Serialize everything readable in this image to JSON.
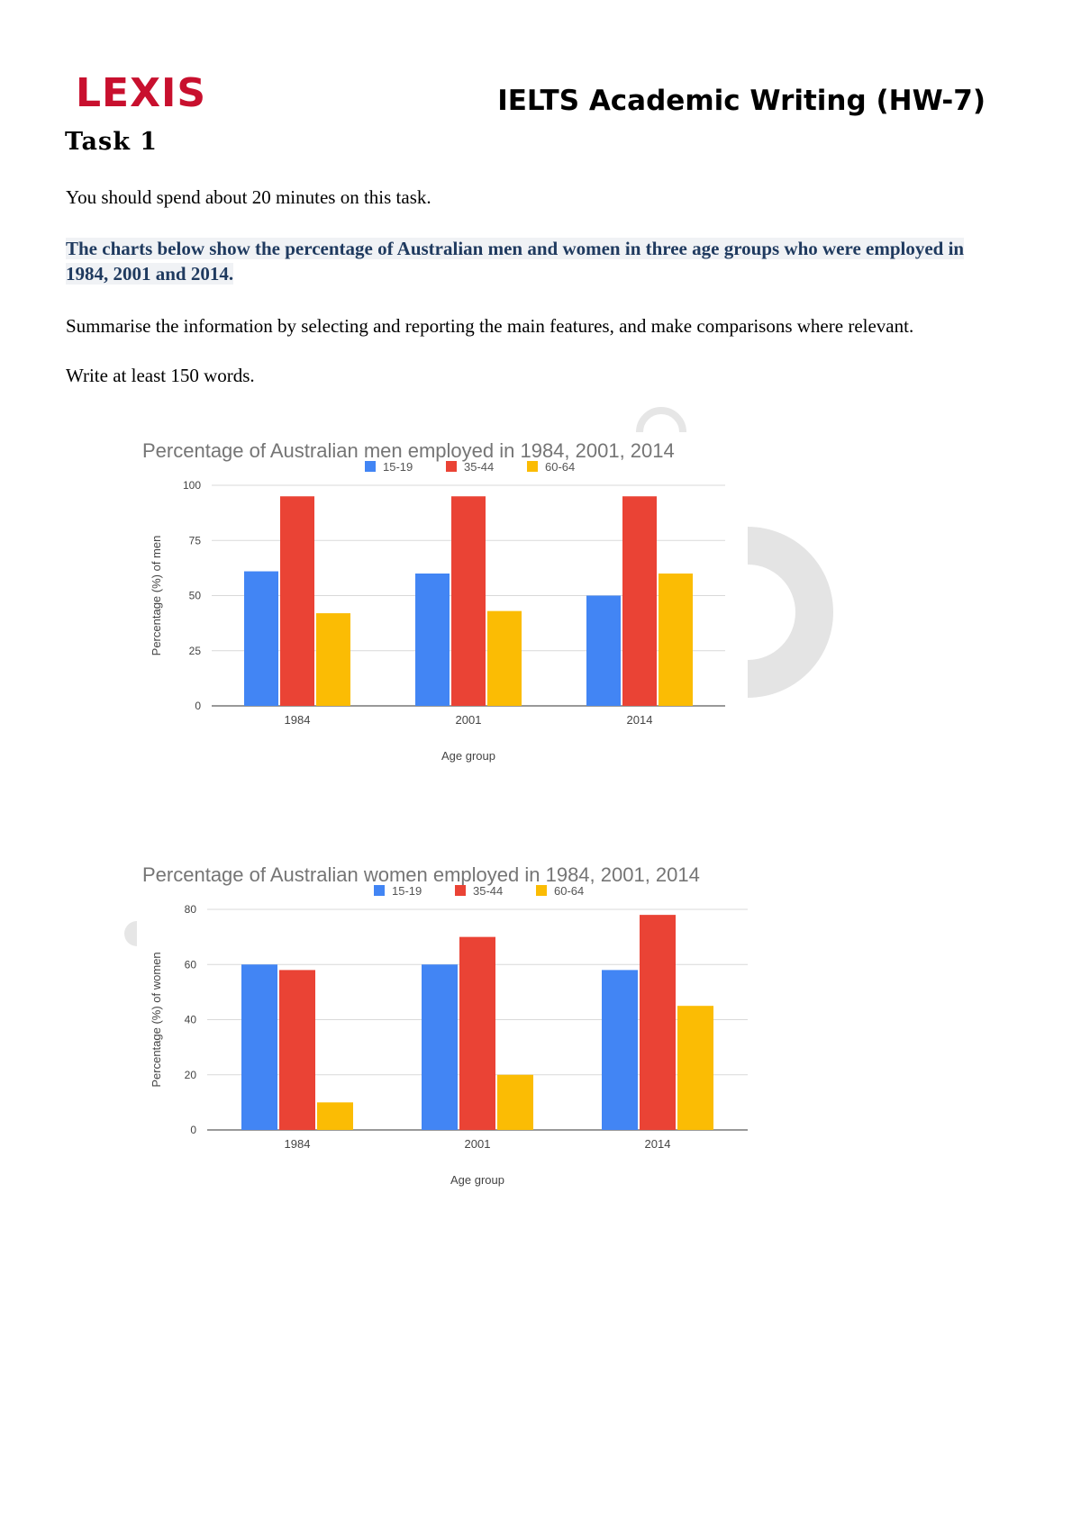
{
  "header": {
    "logo": "LEXIS",
    "title": "IELTS Academic Writing (HW-7)"
  },
  "task": {
    "heading": "Task 1",
    "instruction": "You should spend about 20 minutes on this task.",
    "prompt": "The charts below show the percentage of Australian men and women in three age groups who were employed in 1984, 2001 and 2014.",
    "summarise": "Summarise the information by selecting and reporting the main features, and make comparisons where relevant.",
    "word_limit": "Write at least 150 words."
  },
  "colors": {
    "15-19": "#4285f4",
    "35-44": "#ea4335",
    "60-64": "#fbbc04"
  },
  "chart_data": [
    {
      "type": "bar",
      "title": "Percentage of Australian men employed in 1984, 2001, 2014",
      "xlabel": "Age group",
      "ylabel": "Percentage (%) of men",
      "categories": [
        "1984",
        "2001",
        "2014"
      ],
      "ylim": [
        0,
        100
      ],
      "yticks": [
        0,
        25,
        50,
        75,
        100
      ],
      "grid": true,
      "legend": "top",
      "series": [
        {
          "name": "15-19",
          "values": [
            61,
            60,
            50
          ]
        },
        {
          "name": "35-44",
          "values": [
            95,
            95,
            95
          ]
        },
        {
          "name": "60-64",
          "values": [
            42,
            43,
            60
          ]
        }
      ]
    },
    {
      "type": "bar",
      "title": "Percentage of Australian women employed in 1984, 2001, 2014",
      "xlabel": "Age group",
      "ylabel": "Percentage (%) of women",
      "categories": [
        "1984",
        "2001",
        "2014"
      ],
      "ylim": [
        0,
        80
      ],
      "yticks": [
        0,
        20,
        40,
        60,
        80
      ],
      "grid": true,
      "legend": "top",
      "series": [
        {
          "name": "15-19",
          "values": [
            60,
            60,
            58
          ]
        },
        {
          "name": "35-44",
          "values": [
            58,
            70,
            78
          ]
        },
        {
          "name": "60-64",
          "values": [
            10,
            20,
            45
          ]
        }
      ]
    }
  ]
}
